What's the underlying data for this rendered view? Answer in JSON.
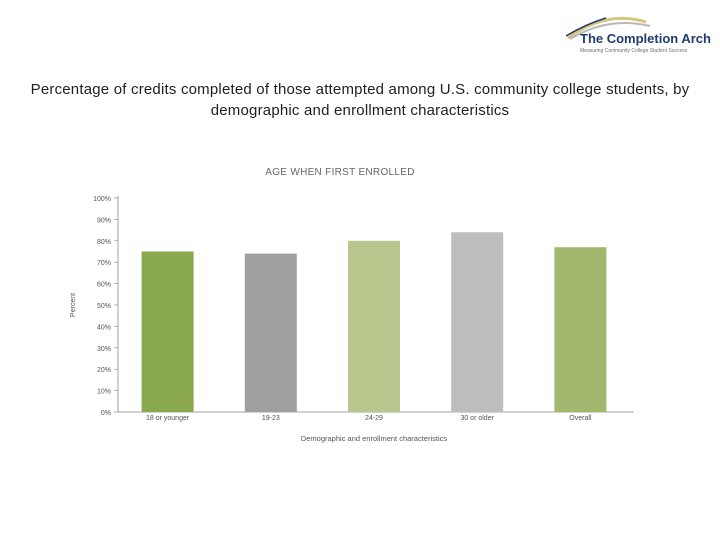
{
  "logo": {
    "name": "The Completion Arch",
    "tagline": "Measuring Community College Student Success"
  },
  "slide_title": "Percentage of credits completed of those attempted among U.S. community college students, by demographic and enrollment characteristics",
  "chart_data": {
    "type": "bar",
    "title": "AGE WHEN FIRST ENROLLED",
    "xlabel": "Demographic and enrollment characteristics",
    "ylabel": "Percent",
    "ylim": [
      0,
      100
    ],
    "yticks": [
      0,
      10,
      20,
      30,
      40,
      50,
      60,
      70,
      80,
      90,
      100
    ],
    "ytick_labels": [
      "0%",
      "10%",
      "20%",
      "30%",
      "40%",
      "50%",
      "60%",
      "70%",
      "80%",
      "90%",
      "100%"
    ],
    "categories": [
      "18 or younger",
      "19-23",
      "24-29",
      "30 or older",
      "Overall"
    ],
    "values": [
      75,
      74,
      80,
      84,
      77
    ],
    "colors": [
      "#8aa84e",
      "#a0a0a0",
      "#b7c78e",
      "#bdbdbd",
      "#a2b86f"
    ]
  }
}
